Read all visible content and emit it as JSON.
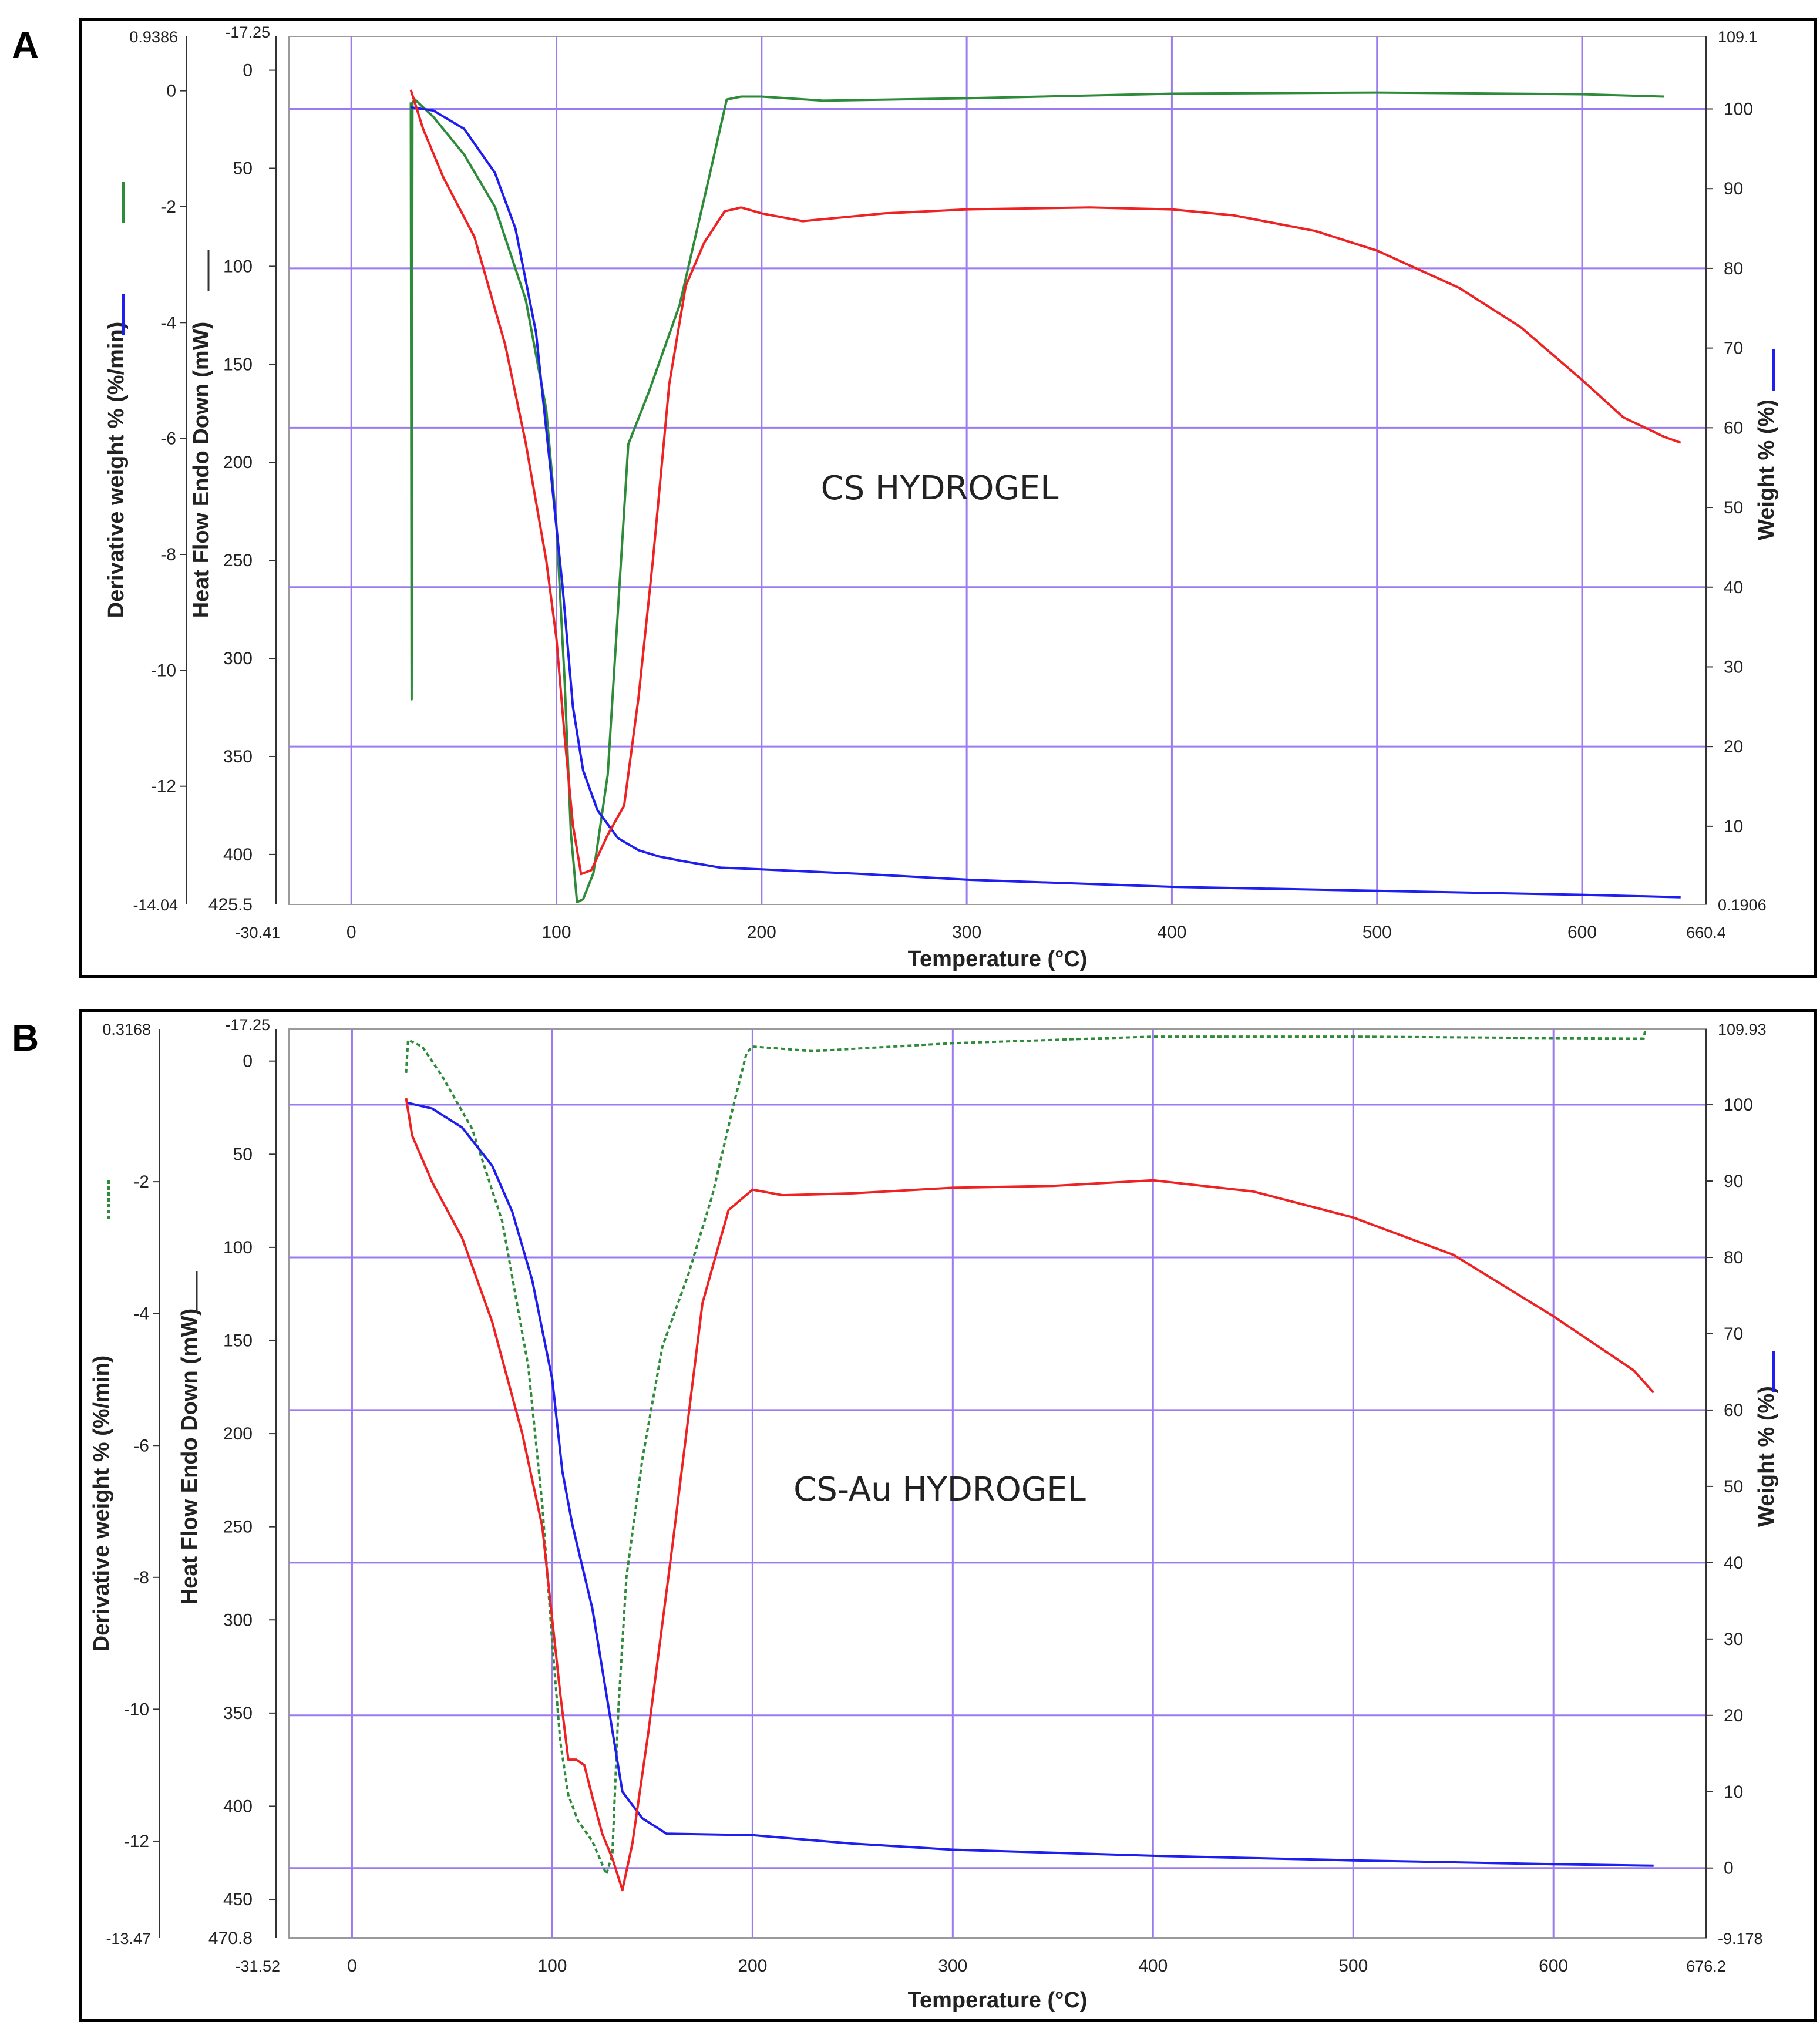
{
  "panels": [
    {
      "label": "A",
      "colors": {
        "derivative": "#2e8b3a",
        "weight": "#1e1ef0",
        "heat_flow": "#ee2222",
        "grid": "#9b7bf0"
      },
      "chart_data": {
        "type": "line",
        "annotation": "CS HYDROGEL",
        "xlabel": "Temperature (°C)",
        "xlim": [
          -30.41,
          660.4
        ],
        "x_tick_values": [
          0,
          100,
          200,
          300,
          400,
          500,
          600
        ],
        "x_tick_labels": [
          "0",
          "100",
          "200",
          "300",
          "400",
          "500",
          "600"
        ],
        "x_end_labels": [
          "-30.41",
          "660.4"
        ],
        "axes": {
          "derivative": {
            "label": "Derivative weight % (%/min)",
            "lim": [
              -14.04,
              0.9386
            ],
            "tick_values": [
              0,
              -2,
              -4,
              -6,
              -8,
              -10,
              -12
            ],
            "tick_labels": [
              "0",
              "-2",
              "-4",
              "-6",
              "-8",
              "-10",
              "-12"
            ],
            "end_labels": [
              "0.9386",
              "-14.04"
            ]
          },
          "heat_flow": {
            "label": "Heat Flow Endo Down (mW)",
            "lim": [
              -17.25,
              425.5
            ],
            "tick_values": [
              0,
              50,
              100,
              150,
              200,
              250,
              300,
              350,
              400
            ],
            "tick_labels": [
              "0",
              "50",
              "100",
              "150",
              "200",
              "250",
              "300",
              "350",
              "400"
            ],
            "end_labels": [
              "-17.25",
              "425.5"
            ]
          },
          "weight": {
            "label": "Weight % (%)",
            "lim": [
              0.1906,
              109.1
            ],
            "tick_values": [
              100,
              90,
              80,
              70,
              60,
              50,
              40,
              30,
              20,
              10
            ],
            "tick_labels": [
              "100",
              "90",
              "80",
              "70",
              "60",
              "50",
              "40",
              "30",
              "20",
              "10"
            ],
            "end_labels": [
              "109.1",
              "0.1906"
            ]
          }
        },
        "series": [
          {
            "name": "Derivative weight",
            "axis": "derivative",
            "style": "solid",
            "x": [
              29,
              29.4,
              29.8,
              31,
              40,
              55,
              70,
              85,
              95,
              100,
              104,
              107,
              110,
              113,
              118,
              125,
              135,
              145,
              160,
              175,
              183,
              190,
              200,
              230,
              300,
              400,
              500,
              600,
              640
            ],
            "y": [
              -0.2,
              -10.5,
              -0.2,
              -0.15,
              -0.45,
              -1.1,
              -2.0,
              -3.6,
              -5.5,
              -7.5,
              -10.2,
              -12.8,
              -14.0,
              -13.95,
              -13.5,
              -11.8,
              -6.1,
              -5.2,
              -3.7,
              -1.4,
              -0.15,
              -0.1,
              -0.1,
              -0.17,
              -0.13,
              -0.05,
              -0.03,
              -0.06,
              -0.1
            ]
          },
          {
            "name": "Weight %",
            "axis": "weight",
            "style": "solid",
            "x": [
              29,
              40,
              55,
              70,
              80,
              90,
              97,
              103,
              108,
              113,
              120,
              130,
              140,
              150,
              160,
              180,
              200,
              250,
              300,
              400,
              500,
              600,
              648
            ],
            "y": [
              100.2,
              99.8,
              97.5,
              92,
              85,
              72,
              55,
              40,
              25,
              17,
              12,
              8.5,
              7,
              6.2,
              5.7,
              4.8,
              4.6,
              4.0,
              3.3,
              2.4,
              1.9,
              1.4,
              1.1
            ]
          },
          {
            "name": "Heat Flow",
            "axis": "heat_flow",
            "style": "solid",
            "x": [
              29,
              35,
              45,
              60,
              75,
              85,
              95,
              100,
              104,
              108,
              112,
              117,
              125,
              133,
              140,
              147,
              155,
              163,
              172,
              182,
              190,
              200,
              220,
              260,
              300,
              360,
              400,
              430,
              470,
              500,
              540,
              570,
              600,
              620,
              630,
              640,
              648
            ],
            "y": [
              10,
              30,
              55,
              85,
              140,
              190,
              250,
              290,
              340,
              385,
              410,
              408,
              390,
              375,
              320,
              250,
              160,
              110,
              88,
              72,
              70,
              73,
              77,
              73,
              71,
              70,
              71,
              74,
              82,
              92,
              111,
              131,
              158,
              177,
              182,
              187,
              190
            ]
          }
        ]
      }
    },
    {
      "label": "B",
      "colors": {
        "derivative": "#2e8b3a",
        "weight": "#1e1ef0",
        "heat_flow": "#ee2222",
        "grid": "#9b7bf0"
      },
      "chart_data": {
        "type": "line",
        "annotation": "CS-Au HYDROGEL",
        "xlabel": "Temperature (°C)",
        "xlim": [
          -31.52,
          676.2
        ],
        "x_tick_values": [
          0,
          100,
          200,
          300,
          400,
          500,
          600
        ],
        "x_tick_labels": [
          "0",
          "100",
          "200",
          "300",
          "400",
          "500",
          "600"
        ],
        "x_end_labels": [
          "-31.52",
          "676.2"
        ],
        "axes": {
          "derivative": {
            "label": "Derivative weight % (%/min)",
            "lim": [
              -13.47,
              0.3168
            ],
            "tick_values": [
              -2,
              -4,
              -6,
              -8,
              -10,
              -12
            ],
            "tick_labels": [
              "-2",
              "-4",
              "-6",
              "-8",
              "-10",
              "-12"
            ],
            "end_labels": [
              "0.3168",
              "-13.47"
            ]
          },
          "heat_flow": {
            "label": "Heat Flow Endo Down (mW)",
            "lim": [
              -17.25,
              470.8
            ],
            "tick_values": [
              0,
              50,
              100,
              150,
              200,
              250,
              300,
              350,
              400,
              450
            ],
            "tick_labels": [
              "0",
              "50",
              "100",
              "150",
              "200",
              "250",
              "300",
              "350",
              "400",
              "450"
            ],
            "end_labels": [
              "-17.25",
              "470.8"
            ]
          },
          "weight": {
            "label": "Weight % (%)",
            "lim": [
              -9.178,
              109.93
            ],
            "tick_values": [
              100,
              90,
              80,
              70,
              60,
              50,
              40,
              30,
              20,
              10,
              0
            ],
            "tick_labels": [
              "100",
              "90",
              "80",
              "70",
              "60",
              "50",
              "40",
              "30",
              "20",
              "10",
              "0"
            ],
            "end_labels": [
              "109.93",
              "-9.178"
            ]
          }
        },
        "series": [
          {
            "name": "Derivative weight",
            "axis": "derivative",
            "style": "dotted",
            "x": [
              27,
              28,
              35,
              45,
              60,
              75,
              88,
              95,
              100,
              104,
              108,
              113,
              120,
              127,
              130,
              133,
              137,
              145,
              155,
              168,
              180,
              190,
              197,
              200,
              230,
              300,
              400,
              500,
              640,
              645,
              646
            ],
            "y": [
              -0.35,
              0.15,
              0.05,
              -0.4,
              -1.2,
              -2.6,
              -4.8,
              -6.9,
              -9.0,
              -10.5,
              -11.3,
              -11.7,
              -12.0,
              -12.5,
              -12.2,
              -10.0,
              -8.0,
              -6.2,
              -4.5,
              -3.4,
              -2.2,
              -0.9,
              -0.05,
              0.05,
              -0.02,
              0.1,
              0.2,
              0.2,
              0.17,
              0.17,
              0.32
            ]
          },
          {
            "name": "Weight %",
            "axis": "weight",
            "style": "solid",
            "x": [
              27,
              40,
              55,
              70,
              80,
              90,
              100,
              105,
              110,
              120,
              130,
              135,
              145,
              157,
              200,
              250,
              300,
              400,
              500,
              600,
              650
            ],
            "y": [
              100.3,
              99.5,
              97,
              92,
              86,
              77,
              64,
              52,
              45,
              34,
              18,
              10,
              6.5,
              4.5,
              4.3,
              3.2,
              2.4,
              1.6,
              1.0,
              0.5,
              0.3
            ]
          },
          {
            "name": "Heat Flow",
            "axis": "heat_flow",
            "style": "solid",
            "x": [
              27,
              30,
              40,
              55,
              70,
              85,
              95,
              100,
              104,
              108,
              112,
              116,
              120,
              125,
              130,
              135,
              140,
              148,
              160,
              175,
              188,
              200,
              215,
              250,
              300,
              350,
              400,
              450,
              500,
              550,
              600,
              640,
              650
            ],
            "y": [
              20,
              40,
              65,
              95,
              140,
              200,
              250,
              300,
              340,
              375,
              375,
              378,
              395,
              415,
              428,
              445,
              420,
              360,
              260,
              130,
              80,
              69,
              72,
              71,
              68,
              67,
              64,
              70,
              84,
              104,
              137,
              166,
              178
            ]
          }
        ]
      }
    }
  ]
}
